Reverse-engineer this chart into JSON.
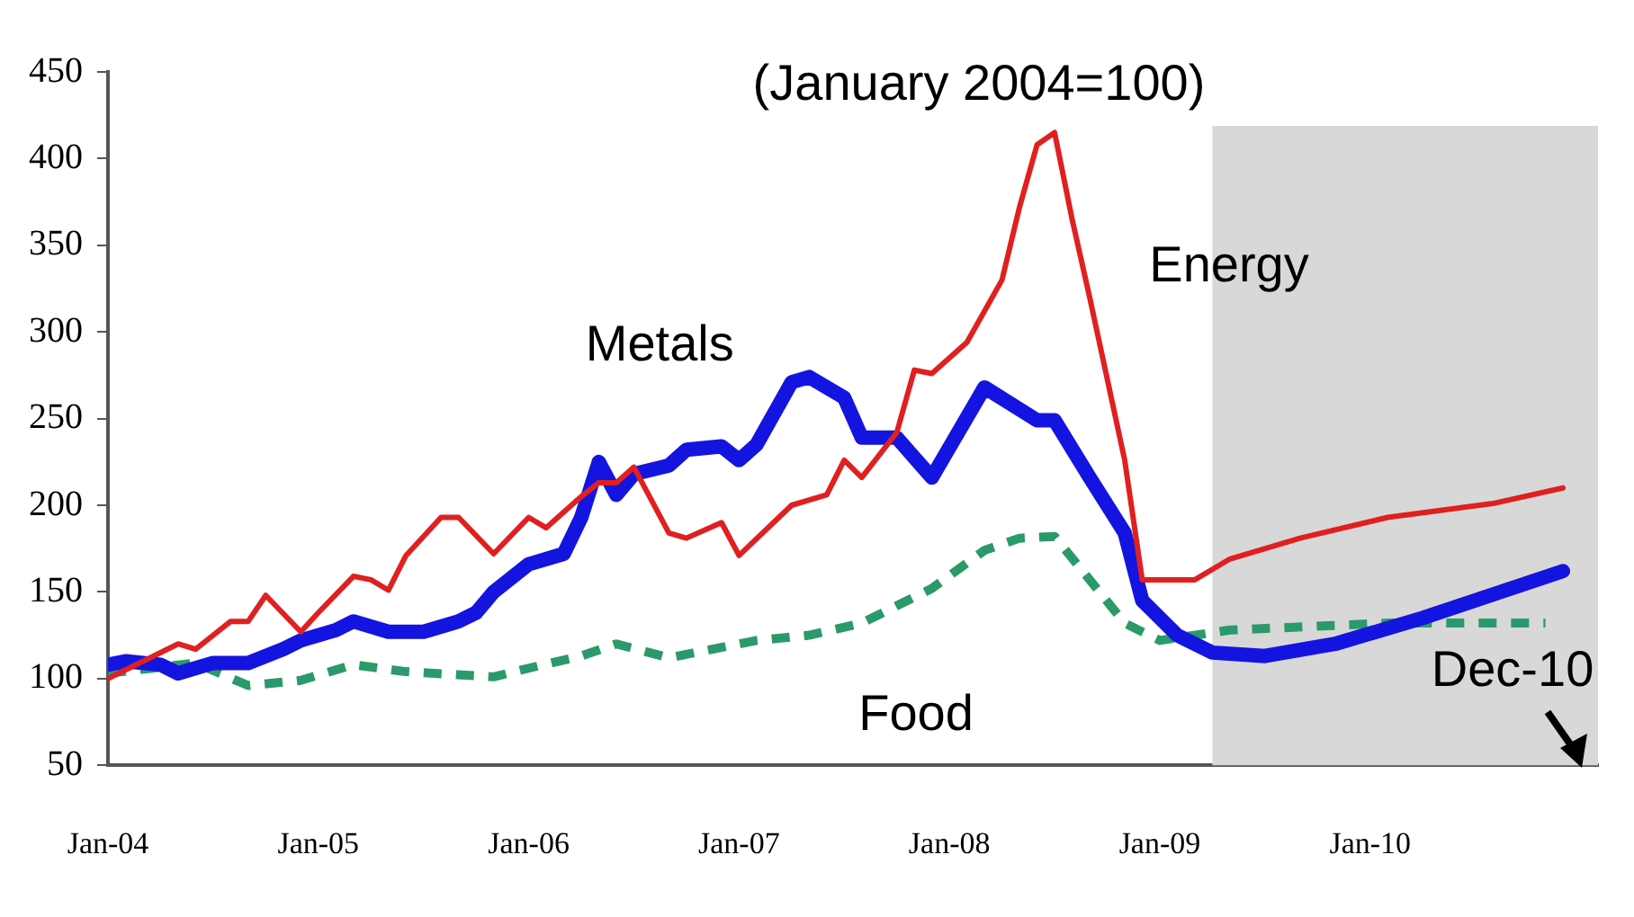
{
  "chart_data": {
    "type": "line",
    "subtitle": "(January 2004=100)",
    "series": [
      {
        "name": "Energy",
        "color": "#e02020",
        "x": [
          "2004-01",
          "2004-05",
          "2004-06",
          "2004-08",
          "2004-09",
          "2004-10",
          "2004-12",
          "2005-01",
          "2005-03",
          "2005-04",
          "2005-05",
          "2005-06",
          "2005-08",
          "2005-09",
          "2005-11",
          "2006-01",
          "2006-02",
          "2006-04",
          "2006-05",
          "2006-06",
          "2006-07",
          "2006-09",
          "2006-10",
          "2006-12",
          "2007-01",
          "2007-04",
          "2007-06",
          "2007-07",
          "2007-08",
          "2007-10",
          "2007-11",
          "2007-12",
          "2008-02",
          "2008-04",
          "2008-05",
          "2008-06",
          "2008-07",
          "2008-08",
          "2008-09",
          "2008-11",
          "2008-12",
          "2009-03",
          "2009-05",
          "2009-09",
          "2010-02",
          "2010-08",
          "2010-12"
        ],
        "values": [
          100,
          120,
          117,
          133,
          133,
          148,
          127,
          138,
          159,
          157,
          151,
          171,
          193,
          193,
          172,
          193,
          187,
          205,
          213,
          213,
          222,
          184,
          181,
          190,
          171,
          200,
          206,
          226,
          216,
          242,
          278,
          276,
          294,
          330,
          372,
          408,
          415,
          365,
          320,
          226,
          157,
          157,
          169,
          181,
          193,
          201,
          210
        ]
      },
      {
        "name": "Metals",
        "color": "#1414e0",
        "x": [
          "2004-01",
          "2004-02",
          "2004-04",
          "2004-05",
          "2004-07",
          "2004-09",
          "2004-11",
          "2004-12",
          "2005-02",
          "2005-03",
          "2005-05",
          "2005-07",
          "2005-09",
          "2005-10",
          "2005-11",
          "2006-01",
          "2006-03",
          "2006-04",
          "2006-05",
          "2006-06",
          "2006-07",
          "2006-09",
          "2006-10",
          "2006-12",
          "2007-01",
          "2007-02",
          "2007-04",
          "2007-05",
          "2007-07",
          "2007-08",
          "2007-10",
          "2007-12",
          "2008-03",
          "2008-06",
          "2008-07",
          "2008-09",
          "2008-11",
          "2008-12",
          "2009-02",
          "2009-04",
          "2009-07",
          "2009-11",
          "2010-04",
          "2010-12"
        ],
        "values": [
          108,
          110,
          108,
          103,
          109,
          109,
          117,
          122,
          128,
          133,
          127,
          127,
          133,
          138,
          150,
          166,
          172,
          193,
          225,
          206,
          218,
          223,
          232,
          234,
          226,
          235,
          271,
          274,
          262,
          239,
          239,
          216,
          268,
          249,
          249,
          216,
          184,
          145,
          125,
          115,
          113,
          120,
          135,
          162
        ]
      },
      {
        "name": "Food",
        "color": "#2a9a6a",
        "line_style": "dashed",
        "x": [
          "2004-01",
          "2004-06",
          "2004-09",
          "2004-12",
          "2005-03",
          "2005-06",
          "2005-11",
          "2006-01",
          "2006-04",
          "2006-06",
          "2006-09",
          "2007-02",
          "2007-05",
          "2007-08",
          "2007-10",
          "2007-12",
          "2008-03",
          "2008-05",
          "2008-07",
          "2008-09",
          "2008-11",
          "2009-01",
          "2009-05",
          "2010-02",
          "2010-11"
        ],
        "values": [
          103,
          109,
          96,
          99,
          108,
          104,
          101,
          106,
          113,
          120,
          112,
          122,
          125,
          132,
          142,
          152,
          174,
          181,
          182,
          157,
          132,
          122,
          128,
          132,
          132
        ]
      }
    ],
    "xlim": [
      "2004-01",
      "2011-02"
    ],
    "xticks": [
      {
        "value": "2004-01",
        "label": "Jan-04"
      },
      {
        "value": "2005-01",
        "label": "Jan-05"
      },
      {
        "value": "2006-01",
        "label": "Jan-06"
      },
      {
        "value": "2007-01",
        "label": "Jan-07"
      },
      {
        "value": "2008-01",
        "label": "Jan-08"
      },
      {
        "value": "2009-01",
        "label": "Jan-09"
      },
      {
        "value": "2010-01",
        "label": "Jan-10"
      }
    ],
    "ylim": [
      50,
      450
    ],
    "yticks": [
      50,
      100,
      150,
      200,
      250,
      300,
      350,
      400,
      450
    ],
    "bands": [
      {
        "axis": "x",
        "from": "2009-04",
        "to": "2011-02",
        "color": "#d8d8d8"
      }
    ],
    "annotations": [
      {
        "text": "Dec-10",
        "x": "2010-12",
        "y": 50
      }
    ],
    "grid": false,
    "legend": false,
    "marker": "none"
  }
}
